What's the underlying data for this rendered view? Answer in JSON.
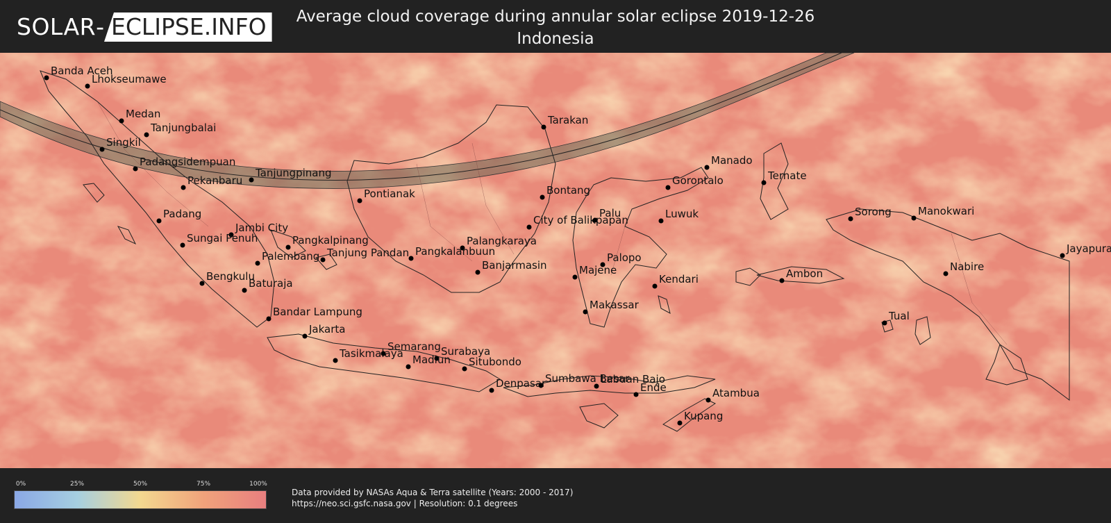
{
  "header": {
    "logo_left": "SOLAR",
    "logo_separator": "-",
    "logo_right": "ECLIPSE.INFO",
    "title_line1": "Average cloud coverage during annular solar eclipse 2019-12-26",
    "title_line2": "Indonesia"
  },
  "map": {
    "cities": [
      {
        "name": "Banda Aceh"
      },
      {
        "name": "Lhokseumawe"
      },
      {
        "name": "Medan"
      },
      {
        "name": "Tanjungbalai"
      },
      {
        "name": "Singkil"
      },
      {
        "name": "Padangsidempuan"
      },
      {
        "name": "Tanjungpinang"
      },
      {
        "name": "Pekanbaru"
      },
      {
        "name": "Padang"
      },
      {
        "name": "Jambi City"
      },
      {
        "name": "Sungai Penuh"
      },
      {
        "name": "Pangkalpinang"
      },
      {
        "name": "Palembang"
      },
      {
        "name": "Tanjung Pandan"
      },
      {
        "name": "Bengkulu"
      },
      {
        "name": "Baturaja"
      },
      {
        "name": "Bandar Lampung"
      },
      {
        "name": "Jakarta"
      },
      {
        "name": "Tasikmalaya"
      },
      {
        "name": "Semarang"
      },
      {
        "name": "Surabaya"
      },
      {
        "name": "Madiun"
      },
      {
        "name": "Situbondo"
      },
      {
        "name": "Denpasar"
      },
      {
        "name": "Sumbawa Besar"
      },
      {
        "name": "Labuan Bajo"
      },
      {
        "name": "Ende"
      },
      {
        "name": "Atambua"
      },
      {
        "name": "Kupang"
      },
      {
        "name": "Pontianak"
      },
      {
        "name": "Tarakan"
      },
      {
        "name": "Bontang"
      },
      {
        "name": "City of Balikpapan"
      },
      {
        "name": "Palangkaraya"
      },
      {
        "name": "Pangkalanbuun"
      },
      {
        "name": "Banjarmasin"
      },
      {
        "name": "Palu"
      },
      {
        "name": "Majene"
      },
      {
        "name": "Palopo"
      },
      {
        "name": "Makassar"
      },
      {
        "name": "Kendari"
      },
      {
        "name": "Luwuk"
      },
      {
        "name": "Gorontalo"
      },
      {
        "name": "Manado"
      },
      {
        "name": "Ternate"
      },
      {
        "name": "Ambon"
      },
      {
        "name": "Tual"
      },
      {
        "name": "Sorong"
      },
      {
        "name": "Manokwari"
      },
      {
        "name": "Nabire"
      },
      {
        "name": "Jayapura"
      }
    ]
  },
  "legend": {
    "ticks": [
      "0%",
      "25%",
      "50%",
      "75%",
      "100%"
    ],
    "colors": [
      "#8aa8e6",
      "#a6cfe0",
      "#f3d890",
      "#f0a37b",
      "#e87f7f"
    ]
  },
  "footer": {
    "source_line1": "Data provided by NASAs Aqua & Terra satellite (Years: 2000 - 2017)",
    "source_line2": "https://neo.sci.gsfc.nasa.gov | Resolution: 0.1 degrees"
  }
}
